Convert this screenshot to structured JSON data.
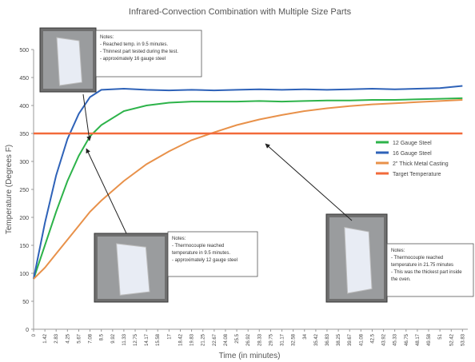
{
  "chart_data": {
    "type": "line",
    "title": "Infrared-Convection Combination with Multiple Size Parts",
    "y_label": "Temperature (Degrees F)",
    "x_label": "Time (in minutes)",
    "xlim": [
      0,
      54.5
    ],
    "ylim": [
      0,
      500
    ],
    "yticks": [
      0,
      50,
      100,
      150,
      200,
      250,
      300,
      350,
      400,
      450,
      500
    ],
    "xticks": [
      0,
      1.42,
      2.83,
      4.25,
      5.67,
      7.08,
      8.5,
      9.92,
      11.33,
      12.75,
      14.17,
      15.58,
      17,
      18.42,
      19.83,
      21.25,
      22.67,
      24.08,
      25.5,
      26.92,
      28.33,
      29.75,
      31.17,
      32.58,
      34,
      35.42,
      36.83,
      38.25,
      39.67,
      41.08,
      42.5,
      43.92,
      45.33,
      46.75,
      48.17,
      49.58,
      51,
      52.42,
      53.83
    ],
    "x": [
      0,
      1.42,
      2.83,
      4.25,
      5.67,
      7.08,
      8.5,
      11.33,
      14.17,
      17,
      19.83,
      22.67,
      25.5,
      28.33,
      31.17,
      34,
      36.83,
      39.67,
      42.5,
      45.33,
      48.17,
      51,
      53.83
    ],
    "series": [
      {
        "name": "12 Gauge Steel",
        "color": "#2db34a",
        "values": [
          90,
          150,
          210,
          265,
          310,
          345,
          365,
          390,
          400,
          405,
          407,
          407,
          407,
          408,
          407,
          408,
          409,
          409,
          410,
          410,
          411,
          412,
          413
        ]
      },
      {
        "name": "16 Gauge Steel",
        "color": "#2e62b8",
        "values": [
          90,
          190,
          275,
          340,
          385,
          415,
          428,
          430,
          428,
          427,
          428,
          427,
          428,
          429,
          428,
          429,
          428,
          429,
          430,
          429,
          430,
          431,
          435
        ]
      },
      {
        "name": "2\" Thick Metal Casting",
        "color": "#e8914a",
        "values": [
          90,
          110,
          135,
          160,
          185,
          210,
          230,
          265,
          295,
          318,
          338,
          352,
          365,
          375,
          383,
          390,
          395,
          399,
          402,
          404,
          406,
          408,
          410
        ]
      },
      {
        "name": "Target Temperature",
        "color": "#f26a3a",
        "values": [
          350,
          350,
          350,
          350,
          350,
          350,
          350,
          350,
          350,
          350,
          350,
          350,
          350,
          350,
          350,
          350,
          350,
          350,
          350,
          350,
          350,
          350,
          350
        ]
      }
    ],
    "annotations": [
      [
        "Notes:",
        "- Reached temp. in 9.5 minutes.",
        "- Thinnest part tested during the test.",
        "- approximately 16 gauge steel"
      ],
      [
        "Notes:",
        "- Thermocouple reached",
        "temperature in 9.5 minutes.",
        "- approximately 12 gauge steel"
      ],
      [
        "Notes:",
        "- Thermocouple reached",
        "temperature in 21.75 minutes",
        "- This was the thickest part inside",
        "the oven."
      ]
    ]
  }
}
